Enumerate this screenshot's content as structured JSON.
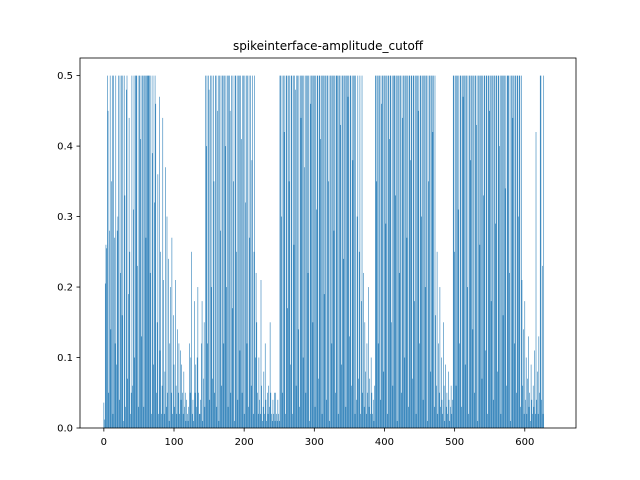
{
  "chart_data": {
    "type": "bar",
    "title": "spikeinterface-amplitude_cutoff",
    "xlabel": "",
    "ylabel": "",
    "xlim": [
      -34,
      673
    ],
    "ylim": [
      0,
      0.525
    ],
    "grid": false,
    "bar_color": "#1f77b4",
    "x_ticks": [
      0,
      100,
      200,
      300,
      400,
      500,
      600
    ],
    "x_tick_labels": [
      "0",
      "100",
      "200",
      "300",
      "400",
      "500",
      "600"
    ],
    "y_ticks": [
      0.0,
      0.1,
      0.2,
      0.3,
      0.4,
      0.5
    ],
    "y_tick_labels": [
      "0.0",
      "0.1",
      "0.2",
      "0.3",
      "0.4",
      "0.5"
    ],
    "x_start": 0,
    "x_step": 1,
    "values": [
      0.036,
      0.012,
      0.205,
      0.26,
      0.255,
      0.5,
      0.45,
      0.05,
      0.28,
      0.5,
      0.14,
      0.35,
      0.5,
      0.02,
      0.5,
      0.27,
      0.12,
      0.5,
      0.09,
      0.28,
      0.3,
      0.5,
      0.04,
      0.5,
      0.22,
      0.5,
      0.16,
      0.5,
      0.01,
      0.5,
      0.33,
      0.03,
      0.48,
      0.5,
      0.07,
      0.19,
      0.44,
      0.25,
      0.02,
      0.05,
      0.5,
      0.06,
      0.31,
      0.5,
      0.1,
      0.5,
      0.5,
      0.5,
      0.23,
      0.03,
      0.5,
      0.5,
      0.41,
      0.5,
      0.13,
      0.5,
      0.5,
      0.03,
      0.5,
      0.5,
      0.27,
      0.5,
      0.5,
      0.5,
      0.5,
      0.5,
      0.22,
      0.5,
      0.02,
      0.39,
      0.5,
      0.09,
      0.32,
      0.5,
      0.46,
      0.05,
      0.15,
      0.36,
      0.02,
      0.47,
      0.11,
      0.25,
      0.02,
      0.06,
      0.44,
      0.21,
      0.02,
      0.08,
      0.37,
      0.03,
      0.3,
      0.05,
      0.24,
      0.01,
      0.12,
      0.2,
      0.05,
      0.27,
      0.02,
      0.16,
      0.09,
      0.03,
      0.21,
      0.06,
      0.02,
      0.14,
      0.05,
      0.12,
      0.02,
      0.11,
      0.04,
      0.09,
      0.05,
      0.02,
      0.08,
      0.03,
      0.05,
      0.01,
      0.04,
      0.02,
      0.01,
      0.03,
      0.12,
      0.05,
      0.1,
      0.25,
      0.02,
      0.04,
      0.01,
      0.18,
      0.05,
      0.09,
      0.03,
      0.1,
      0.2,
      0.05,
      0.02,
      0.02,
      0.04,
      0.12,
      0.18,
      0.01,
      0.07,
      0.15,
      0.03,
      0.5,
      0.4,
      0.5,
      0.12,
      0.5,
      0.48,
      0.04,
      0.5,
      0.2,
      0.5,
      0.07,
      0.5,
      0.35,
      0.05,
      0.5,
      0.5,
      0.03,
      0.45,
      0.5,
      0.01,
      0.5,
      0.28,
      0.5,
      0.06,
      0.5,
      0.5,
      0.12,
      0.5,
      0.4,
      0.5,
      0.2,
      0.5,
      0.03,
      0.5,
      0.5,
      0.45,
      0.05,
      0.5,
      0.17,
      0.5,
      0.35,
      0.01,
      0.5,
      0.5,
      0.25,
      0.5,
      0.04,
      0.5,
      0.5,
      0.11,
      0.5,
      0.41,
      0.05,
      0.5,
      0.5,
      0.02,
      0.5,
      0.32,
      0.5,
      0.12,
      0.5,
      0.03,
      0.5,
      0.27,
      0.5,
      0.06,
      0.38,
      0.5,
      0.02,
      0.25,
      0.5,
      0.1,
      0.22,
      0.15,
      0.05,
      0.02,
      0.1,
      0.04,
      0.02,
      0.21,
      0.06,
      0.01,
      0.03,
      0.08,
      0.02,
      0.12,
      0.04,
      0.01,
      0.05,
      0.02,
      0.06,
      0.03,
      0.15,
      0.05,
      0.02,
      0.01,
      0.04,
      0.02,
      0.05,
      0.01,
      0.05,
      0.02,
      0.01,
      0.04,
      0.02,
      0.01,
      0.5,
      0.5,
      0.3,
      0.5,
      0.05,
      0.5,
      0.42,
      0.5,
      0.02,
      0.5,
      0.5,
      0.17,
      0.5,
      0.35,
      0.5,
      0.09,
      0.5,
      0.5,
      0.02,
      0.5,
      0.26,
      0.5,
      0.48,
      0.06,
      0.5,
      0.5,
      0.14,
      0.5,
      0.03,
      0.5,
      0.44,
      0.5,
      0.5,
      0.1,
      0.5,
      0.37,
      0.5,
      0.05,
      0.5,
      0.5,
      0.22,
      0.5,
      0.01,
      0.5,
      0.46,
      0.5,
      0.5,
      0.15,
      0.5,
      0.5,
      0.03,
      0.5,
      0.31,
      0.5,
      0.5,
      0.07,
      0.5,
      0.5,
      0.41,
      0.5,
      0.02,
      0.5,
      0.5,
      0.19,
      0.5,
      0.5,
      0.04,
      0.5,
      0.5,
      0.35,
      0.5,
      0.01,
      0.5,
      0.5,
      0.12,
      0.5,
      0.5,
      0.28,
      0.5,
      0.05,
      0.5,
      0.5,
      0.5,
      0.02,
      0.5,
      0.5,
      0.43,
      0.5,
      0.09,
      0.5,
      0.5,
      0.24,
      0.5,
      0.5,
      0.03,
      0.5,
      0.5,
      0.47,
      0.5,
      0.13,
      0.5,
      0.5,
      0.06,
      0.5,
      0.38,
      0.5,
      0.5,
      0.02,
      0.5,
      0.04,
      0.3,
      0.5,
      0.07,
      0.25,
      0.5,
      0.02,
      0.18,
      0.5,
      0.05,
      0.22,
      0.03,
      0.15,
      0.08,
      0.02,
      0.12,
      0.05,
      0.2,
      0.03,
      0.07,
      0.02,
      0.1,
      0.05,
      0.02,
      0.04,
      0.01,
      0.06,
      0.5,
      0.5,
      0.35,
      0.5,
      0.12,
      0.5,
      0.5,
      0.04,
      0.5,
      0.46,
      0.5,
      0.5,
      0.08,
      0.5,
      0.5,
      0.29,
      0.5,
      0.02,
      0.5,
      0.5,
      0.41,
      0.5,
      0.5,
      0.15,
      0.5,
      0.06,
      0.5,
      0.5,
      0.5,
      0.33,
      0.5,
      0.01,
      0.5,
      0.5,
      0.22,
      0.5,
      0.5,
      0.05,
      0.5,
      0.44,
      0.5,
      0.5,
      0.1,
      0.5,
      0.5,
      0.27,
      0.5,
      0.03,
      0.5,
      0.5,
      0.38,
      0.5,
      0.5,
      0.07,
      0.5,
      0.5,
      0.18,
      0.5,
      0.02,
      0.5,
      0.5,
      0.45,
      0.5,
      0.12,
      0.5,
      0.5,
      0.3,
      0.5,
      0.04,
      0.5,
      0.5,
      0.2,
      0.5,
      0.5,
      0.01,
      0.5,
      0.35,
      0.5,
      0.5,
      0.08,
      0.5,
      0.5,
      0.42,
      0.5,
      0.03,
      0.5,
      0.16,
      0.06,
      0.25,
      0.02,
      0.12,
      0.05,
      0.2,
      0.03,
      0.1,
      0.04,
      0.02,
      0.15,
      0.06,
      0.01,
      0.09,
      0.03,
      0.05,
      0.02,
      0.08,
      0.04,
      0.01,
      0.03,
      0.06,
      0.02,
      0.04,
      0.5,
      0.5,
      0.25,
      0.5,
      0.06,
      0.5,
      0.5,
      0.31,
      0.5,
      0.12,
      0.5,
      0.5,
      0.03,
      0.5,
      0.47,
      0.5,
      0.5,
      0.09,
      0.5,
      0.5,
      0.2,
      0.5,
      0.02,
      0.5,
      0.5,
      0.38,
      0.5,
      0.5,
      0.14,
      0.5,
      0.05,
      0.5,
      0.5,
      0.43,
      0.5,
      0.01,
      0.5,
      0.5,
      0.26,
      0.5,
      0.5,
      0.07,
      0.5,
      0.33,
      0.5,
      0.5,
      0.11,
      0.5,
      0.5,
      0.02,
      0.5,
      0.5,
      0.45,
      0.5,
      0.18,
      0.5,
      0.5,
      0.04,
      0.5,
      0.5,
      0.29,
      0.5,
      0.5,
      0.08,
      0.5,
      0.5,
      0.4,
      0.5,
      0.02,
      0.5,
      0.5,
      0.16,
      0.5,
      0.5,
      0.34,
      0.5,
      0.06,
      0.5,
      0.5,
      0.5,
      0.22,
      0.5,
      0.01,
      0.5,
      0.5,
      0.44,
      0.5,
      0.12,
      0.5,
      0.5,
      0.05,
      0.5,
      0.5,
      0.3,
      0.5,
      0.5,
      0.03,
      0.5,
      0.21,
      0.06,
      0.14,
      0.02,
      0.18,
      0.04,
      0.1,
      0.02,
      0.07,
      0.13,
      0.03,
      0.05,
      0.01,
      0.09,
      0.04,
      0.02,
      0.06,
      0.03,
      0.11,
      0.02,
      0.42,
      0.04,
      0.08,
      0.02,
      0.13,
      0.05,
      0.5,
      0.5,
      0.04,
      0.23,
      0.02,
      0.5,
      0.0,
      0.0,
      0.0,
      0.0,
      0.0,
      0.0,
      0.0,
      0.0,
      0.0,
      0.0
    ]
  }
}
